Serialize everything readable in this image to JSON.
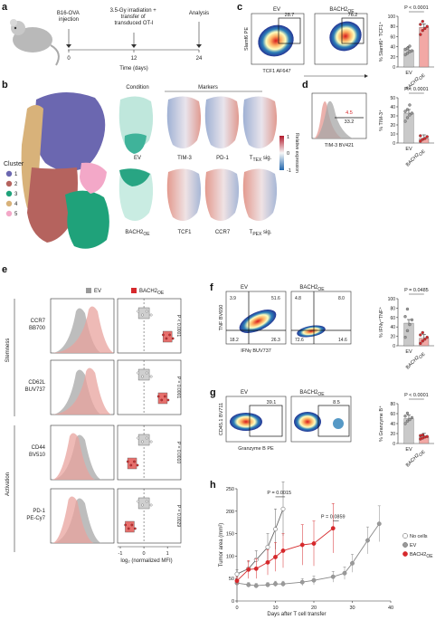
{
  "panels": {
    "a": {
      "letter": "a",
      "events": [
        {
          "label_lines": [
            "B16-OVA",
            "injection"
          ]
        },
        {
          "label_lines": [
            "3.5-Gy irradiation +",
            "transfer of",
            "transduced OT-I"
          ]
        },
        {
          "label_lines": [
            "Analysis"
          ]
        }
      ],
      "ticks": [
        "0",
        "12",
        "24"
      ],
      "xlabel": "Time (days)"
    },
    "b": {
      "letter": "b",
      "cluster_title": "Cluster",
      "clusters": [
        {
          "id": "1",
          "color": "#6b67b0"
        },
        {
          "id": "2",
          "color": "#b5635e"
        },
        {
          "id": "3",
          "color": "#1fa27a"
        },
        {
          "id": "4",
          "color": "#d8b27a"
        },
        {
          "id": "5",
          "color": "#f3a8c8"
        }
      ],
      "condition_header": "Condition",
      "markers_header": "Markers",
      "row1": {
        "condition": "EV",
        "markers": [
          "TIM-3",
          "PD-1",
          "T"
        ],
        "tex_sub": "TEX",
        "tex_suffix": " sig."
      },
      "row2": {
        "condition": "BACH2",
        "condition_sub": "OE",
        "markers": [
          "TCF1",
          "CCR7",
          "T"
        ],
        "tpex_sub": "PEX",
        "tpex_suffix": " sig."
      },
      "colorbar_title": "Relative expression",
      "colorbar_ticks": [
        "1",
        "0",
        "-1"
      ]
    },
    "c": {
      "letter": "c",
      "plot_titles": [
        "EV",
        "BACH2",
        "OE"
      ],
      "gate_values": [
        "28.7",
        "76.2"
      ],
      "ylabel": "Slamf6 PE",
      "xlabel": "TCF1 AF647",
      "bar_ylabel": "% Slamf6⁺ TCF1⁺",
      "pvalue": "P < 0.0001",
      "yticks": [
        "0",
        "20",
        "40",
        "60",
        "80",
        "100"
      ],
      "groups": [
        "EV",
        "BACH2",
        "OE"
      ]
    },
    "d": {
      "letter": "d",
      "hist_values": [
        "4.5",
        "33.2"
      ],
      "xlabel": "TIM-3 BV421",
      "bar_ylabel": "% TIM-3⁺",
      "pvalue": "P < 0.0001",
      "yticks": [
        "0",
        "10",
        "20",
        "30",
        "40",
        "50"
      ],
      "groups": [
        "EV",
        "BACH2",
        "OE"
      ]
    },
    "e": {
      "letter": "e",
      "legend": [
        "EV",
        "BACH2",
        "OE"
      ],
      "markers": [
        {
          "name": "CCR7",
          "fluor": "BB700",
          "pvalue": "P < 0.0001"
        },
        {
          "name": "CD62L",
          "fluor": "BUV737",
          "pvalue": "P = 0.0001"
        },
        {
          "name": "CD44",
          "fluor": "BV510",
          "pvalue": "P = 0.0010"
        },
        {
          "name": "PD-1",
          "fluor": "PE-Cy7",
          "pvalue": "P = 0.0029"
        }
      ],
      "groups": [
        "Stemness",
        "Activation"
      ],
      "xticks": [
        "-1",
        "0",
        "1"
      ],
      "xlabel": "log₂ (normalized MFI)"
    },
    "f": {
      "letter": "f",
      "plot_titles": [
        "EV",
        "BACH2",
        "OE"
      ],
      "quad_ev": [
        "3.9",
        "51.6",
        "18.2",
        "26.3"
      ],
      "quad_bach": [
        "4.8",
        "8.0",
        "72.6",
        "14.6"
      ],
      "ylabel": "TNF BV650",
      "xlabel": "IFNγ BUV737",
      "bar_ylabel": "% IFNγ⁺TNF⁺",
      "pvalue": "P = 0.0485",
      "yticks": [
        "0",
        "20",
        "40",
        "60",
        "80",
        "100"
      ],
      "groups": [
        "EV",
        "BACH2",
        "OE"
      ]
    },
    "g": {
      "letter": "g",
      "plot_titles": [
        "EV",
        "BACH2",
        "OE"
      ],
      "gate_values": [
        "39.1",
        "8.5"
      ],
      "ylabel": "CD45.1 BV711",
      "xlabel": "Granzyme B PE",
      "bar_ylabel": "% Granzyme B⁺",
      "pvalue": "P < 0.0001",
      "yticks": [
        "0",
        "20",
        "40",
        "60",
        "80"
      ],
      "groups": [
        "EV",
        "BACH2",
        "OE"
      ]
    },
    "h": {
      "letter": "h",
      "ylabel": "Tumor area (mm²)",
      "xlabel": "Days after T cell transfer",
      "xticks": [
        "0",
        "10",
        "20",
        "30",
        "40"
      ],
      "yticks": [
        "0",
        "50",
        "100",
        "150",
        "200",
        "250"
      ],
      "pvalues": [
        "P = 0.0015",
        "P = 0.0859"
      ],
      "legend": [
        {
          "name": "No cells",
          "color": "#ffffff"
        },
        {
          "name": "EV",
          "color": "#9a9a9a"
        },
        {
          "name": "BACH2",
          "sub": "OE",
          "color": "#d6292c"
        }
      ]
    }
  },
  "chart_data": [
    {
      "type": "bar",
      "panel": "c",
      "categories": [
        "EV",
        "BACH2OE"
      ],
      "values": [
        33,
        78
      ],
      "points": [
        [
          24,
          27,
          30,
          32,
          35,
          37,
          41
        ],
        [
          64,
          72,
          76,
          80,
          84,
          90
        ]
      ],
      "ylim": [
        0,
        100
      ]
    },
    {
      "type": "bar",
      "panel": "d",
      "categories": [
        "EV",
        "BACH2OE"
      ],
      "values": [
        33,
        5
      ],
      "points": [
        [
          24,
          28,
          31,
          33,
          35,
          37,
          42
        ],
        [
          2,
          4,
          5,
          7,
          8
        ]
      ],
      "ylim": [
        0,
        50
      ]
    },
    {
      "type": "bar",
      "panel": "f",
      "categories": [
        "EV",
        "BACH2OE"
      ],
      "values": [
        48,
        16
      ],
      "points": [
        [
          18,
          32,
          45,
          55,
          62,
          78
        ],
        [
          5,
          10,
          14,
          18,
          23,
          28
        ]
      ],
      "ylim": [
        0,
        100
      ]
    },
    {
      "type": "bar",
      "panel": "g",
      "categories": [
        "EV",
        "BACH2OE"
      ],
      "values": [
        50,
        13
      ],
      "points": [
        [
          40,
          45,
          48,
          52,
          55,
          61
        ],
        [
          9,
          11,
          13,
          14,
          16,
          17
        ]
      ],
      "ylim": [
        0,
        80
      ]
    },
    {
      "type": "line",
      "panel": "h",
      "xlim": [
        0,
        40
      ],
      "ylim": [
        0,
        250
      ],
      "series": [
        {
          "name": "No cells",
          "x": [
            0,
            3,
            5,
            8,
            10,
            12
          ],
          "y": [
            60,
            72,
            92,
            120,
            160,
            205
          ],
          "err": [
            10,
            15,
            20,
            30,
            45,
            60
          ]
        },
        {
          "name": "EV",
          "x": [
            0,
            3,
            5,
            8,
            10,
            12,
            17,
            20,
            25,
            28,
            30,
            34,
            37
          ],
          "y": [
            40,
            36,
            34,
            36,
            38,
            38,
            42,
            46,
            54,
            62,
            84,
            135,
            172
          ],
          "err": [
            6,
            5,
            5,
            5,
            6,
            6,
            8,
            10,
            12,
            14,
            20,
            30,
            40
          ]
        },
        {
          "name": "BACH2OE",
          "x": [
            0,
            3,
            5,
            8,
            10,
            12,
            17,
            20,
            25
          ],
          "y": [
            45,
            70,
            72,
            86,
            98,
            112,
            125,
            128,
            162
          ],
          "err": [
            8,
            20,
            22,
            28,
            32,
            38,
            45,
            50,
            55
          ]
        }
      ]
    },
    {
      "type": "bar",
      "panel": "e",
      "categories": [
        "CCR7",
        "CD62L",
        "CD44",
        "PD-1"
      ],
      "series": [
        {
          "name": "EV",
          "values": [
            0.0,
            0.0,
            0.0,
            0.0
          ]
        },
        {
          "name": "BACH2OE",
          "values": [
            1.0,
            0.8,
            -0.5,
            -0.6
          ]
        }
      ],
      "xlim": [
        -1,
        1.3
      ]
    }
  ]
}
